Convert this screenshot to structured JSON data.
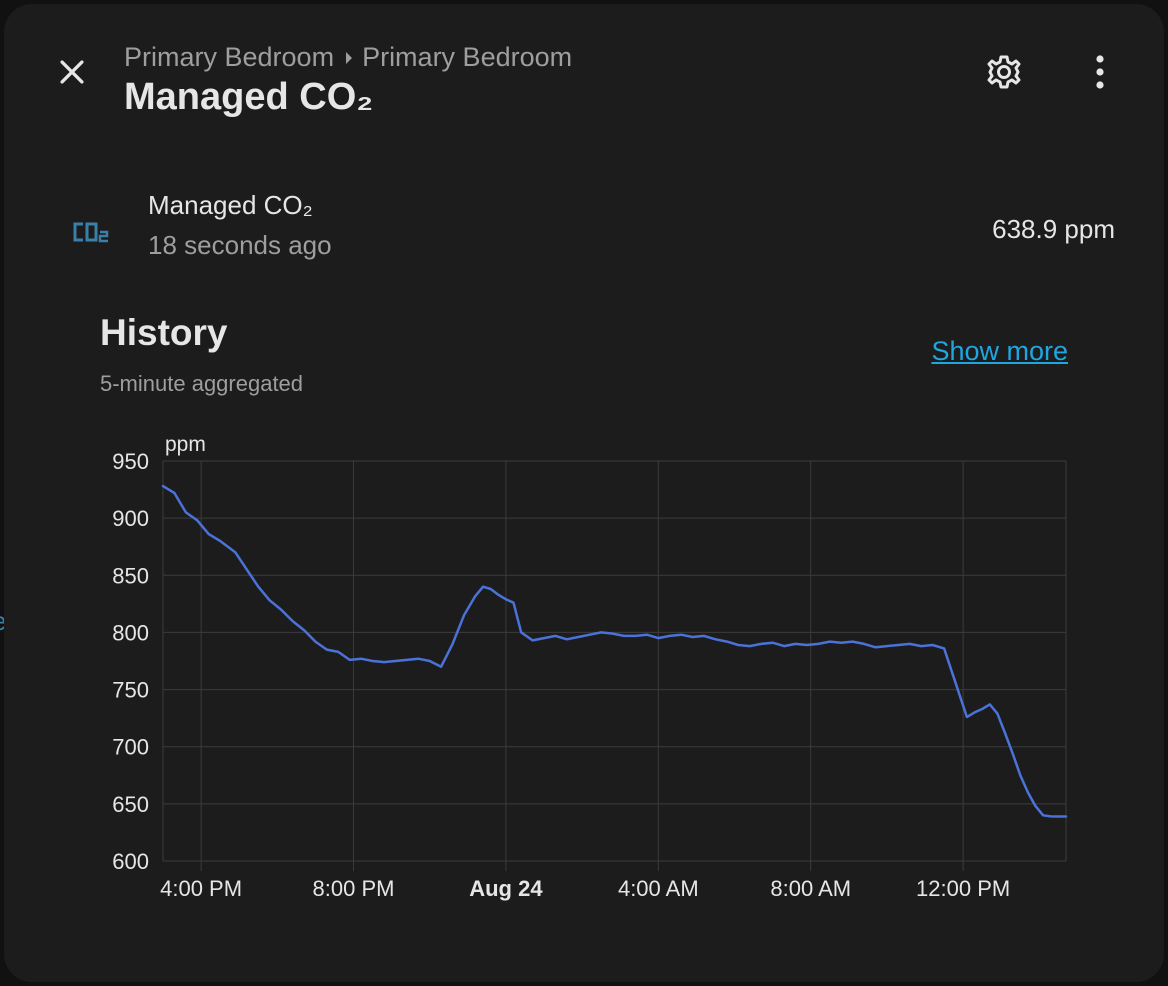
{
  "header": {
    "breadcrumb": [
      "Primary Bedroom",
      "Primary Bedroom"
    ],
    "title": "Managed CO₂"
  },
  "icons": {
    "close": "close-icon",
    "settings": "gear-icon",
    "more": "more-vertical-icon",
    "entity": "co2-icon",
    "separator": "chevron-right-icon"
  },
  "entity": {
    "name": "Managed CO₂",
    "last_updated": "18 seconds ago",
    "state": "638.9 ppm",
    "icon_label": "CO₂"
  },
  "history": {
    "title": "History",
    "subtitle": "5-minute aggregated",
    "show_more": "Show more"
  },
  "colors": {
    "line": "#4a72d8",
    "link": "#1fa5e0",
    "icon": "#3a7fa8"
  },
  "chart_data": {
    "type": "line",
    "unit_label": "ppm",
    "ylim": [
      600,
      950
    ],
    "yticks": [
      950,
      900,
      850,
      800,
      750,
      700,
      650,
      600
    ],
    "x_hours_range": [
      15.0,
      38.7
    ],
    "xticks": [
      {
        "hour": 16,
        "label": "4:00 PM",
        "bold": false
      },
      {
        "hour": 20,
        "label": "8:00 PM",
        "bold": false
      },
      {
        "hour": 24,
        "label": "Aug 24",
        "bold": true
      },
      {
        "hour": 28,
        "label": "4:00 AM",
        "bold": false
      },
      {
        "hour": 32,
        "label": "8:00 AM",
        "bold": false
      },
      {
        "hour": 36,
        "label": "12:00 PM",
        "bold": false
      }
    ],
    "grid": true,
    "series": [
      {
        "x": [
          15.0,
          15.3,
          15.6,
          15.9,
          16.2,
          16.5,
          16.9,
          17.2,
          17.5,
          17.8,
          18.1,
          18.4,
          18.7,
          19.0,
          19.3,
          19.6,
          19.9,
          20.2,
          20.5,
          20.8,
          21.1,
          21.4,
          21.7,
          22.0,
          22.3,
          22.6,
          22.9,
          23.2,
          23.4,
          23.6,
          23.8,
          24.0,
          24.2,
          24.4,
          24.7,
          25.0,
          25.3,
          25.6,
          25.9,
          26.2,
          26.5,
          26.8,
          27.1,
          27.4,
          27.7,
          28.0,
          28.3,
          28.6,
          28.9,
          29.2,
          29.5,
          29.8,
          30.1,
          30.4,
          30.7,
          31.0,
          31.3,
          31.6,
          31.9,
          32.2,
          32.5,
          32.8,
          33.1,
          33.4,
          33.7,
          34.0,
          34.3,
          34.6,
          34.9,
          35.2,
          35.5,
          35.8,
          36.1,
          36.3,
          36.5,
          36.7,
          36.9,
          37.1,
          37.3,
          37.5,
          37.7,
          37.9,
          38.1,
          38.3,
          38.5,
          38.7
        ],
        "y": [
          928,
          922,
          905,
          898,
          886,
          880,
          870,
          855,
          840,
          828,
          820,
          810,
          802,
          792,
          785,
          783,
          776,
          777,
          775,
          774,
          775,
          776,
          777,
          775,
          770,
          790,
          815,
          832,
          840,
          838,
          833,
          829,
          826,
          800,
          793,
          795,
          797,
          794,
          796,
          798,
          800,
          799,
          797,
          797,
          798,
          795,
          797,
          798,
          796,
          797,
          794,
          792,
          789,
          788,
          790,
          791,
          788,
          790,
          789,
          790,
          792,
          791,
          792,
          790,
          787,
          788,
          789,
          790,
          788,
          789,
          786,
          756,
          726,
          730,
          733,
          737,
          729,
          712,
          694,
          675,
          660,
          648,
          640,
          639,
          638.9,
          638.9
        ]
      }
    ]
  }
}
